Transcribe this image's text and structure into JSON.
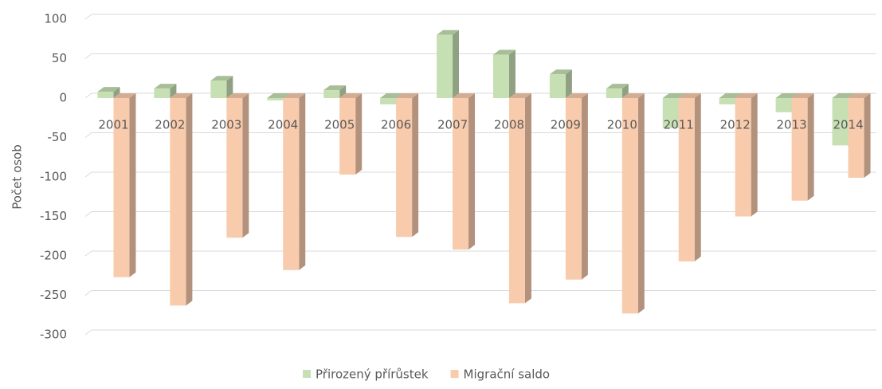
{
  "chart_data": {
    "type": "bar",
    "y_label": "Počet osob",
    "categories": [
      "2001",
      "2002",
      "2003",
      "2004",
      "2005",
      "2006",
      "2007",
      "2008",
      "2009",
      "2010",
      "2011",
      "2012",
      "2013",
      "2014"
    ],
    "series": [
      {
        "name": "Přirozený přírůstek",
        "color": "#c6e0b4",
        "values": [
          8,
          12,
          22,
          -3,
          10,
          -8,
          80,
          55,
          30,
          12,
          -38,
          -8,
          -18,
          -60
        ]
      },
      {
        "name": "Migrační saldo",
        "color": "#f8cbad",
        "values": [
          -227,
          -263,
          -177,
          -218,
          -97,
          -176,
          -192,
          -260,
          -230,
          -273,
          -207,
          -150,
          -130,
          -101
        ]
      }
    ],
    "ylim": [
      -300,
      100
    ],
    "yticks": [
      -300,
      -250,
      -200,
      -150,
      -100,
      -50,
      0,
      50,
      100
    ],
    "grid": true,
    "legend": "bottom"
  }
}
